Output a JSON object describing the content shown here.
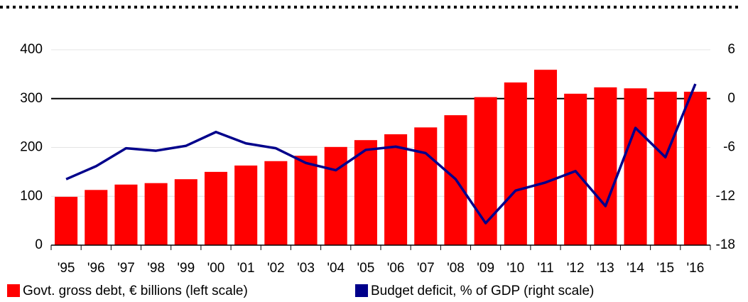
{
  "chart_data": {
    "type": "bar",
    "categories": [
      "'95",
      "'96",
      "'97",
      "'98",
      "'99",
      "'00",
      "'01",
      "'02",
      "'03",
      "'04",
      "'05",
      "'06",
      "'07",
      "'08",
      "'09",
      "'10",
      "'11",
      "'12",
      "'13",
      "'14",
      "'15",
      "'16"
    ],
    "series": [
      {
        "name": "Govt. gross debt, € billions (left scale)",
        "type": "bar",
        "color": "#ff0000",
        "values": [
          99,
          113,
          124,
          127,
          135,
          150,
          163,
          172,
          183,
          201,
          215,
          227,
          241,
          266,
          303,
          333,
          359,
          310,
          323,
          321,
          314,
          314
        ]
      },
      {
        "name": "Budget deficit, % of GDP (right scale)",
        "type": "line",
        "axis": "y2",
        "color": "#00008b",
        "values": [
          -9.9,
          -8.3,
          -6.1,
          -6.4,
          -5.8,
          -4.1,
          -5.5,
          -6.1,
          -7.9,
          -8.8,
          -6.3,
          -5.9,
          -6.7,
          -9.9,
          -15.3,
          -11.3,
          -10.3,
          -8.9,
          -13.2,
          -3.6,
          -7.2,
          1.8
        ]
      }
    ],
    "ylim": [
      0,
      400
    ],
    "yticks": [
      0,
      100,
      200,
      300,
      400
    ],
    "y2lim": [
      -18,
      6
    ],
    "y2ticks": [
      -18,
      -12,
      -6,
      0,
      6
    ],
    "grid": true,
    "legend": "bottom"
  }
}
